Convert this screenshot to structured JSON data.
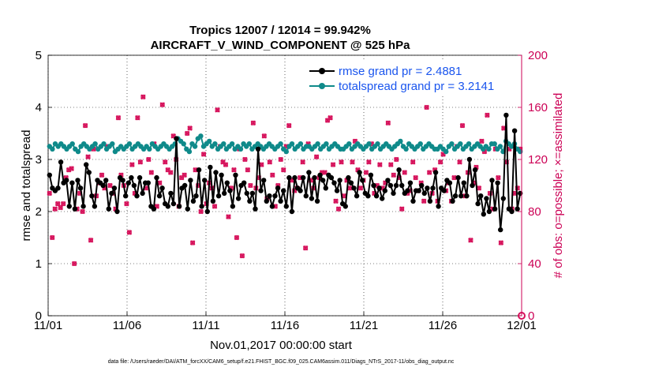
{
  "chart_data": {
    "type": "line",
    "title_line1": "Tropics 12007 / 12014 = 99.942%",
    "title_line2": "AIRCRAFT_V_WIND_COMPONENT @ 525 hPa",
    "xlabel": "Nov.01,2017 00:00:00 start",
    "ylabel_left": "rmse and totalspread",
    "ylabel_right": "# of obs: o=possible; ×=assimilated",
    "footnote": "data file: /Users/raeder/DAI/ATM_forcXX/CAM6_setup/f.e21.FHIST_BGC.f09_025.CAM6assim.011/Diags_NTrS_2017-11/obs_diag_output.nc",
    "xlim": [
      0,
      30
    ],
    "ylim_left": [
      0,
      5
    ],
    "ylim_right": [
      0,
      200
    ],
    "x_ticks": [
      0,
      5,
      10,
      15,
      20,
      25,
      30
    ],
    "x_tick_labels": [
      "11/01",
      "11/06",
      "11/11",
      "11/16",
      "11/21",
      "11/26",
      "12/01"
    ],
    "y_ticks_left": [
      "0",
      "1",
      "2",
      "3",
      "4",
      "5"
    ],
    "y_ticks_right": [
      "0",
      "40",
      "80",
      "120",
      "160",
      "200"
    ],
    "colors": {
      "rmse": "#000000",
      "spread": "#0f8a8a",
      "obs": "#d6125b",
      "right_axis": "#cc0055",
      "legend_text": "#1a55ee"
    },
    "series": [
      {
        "name": "rmse grand pr = 2.4881",
        "color": "#000000",
        "values": [
          2.7,
          2.45,
          2.4,
          2.45,
          2.95,
          2.55,
          2.6,
          2.1,
          2.55,
          2.05,
          2.6,
          2.45,
          2.1,
          2.9,
          2.75,
          2.3,
          2.1,
          2.6,
          2.55,
          2.5,
          2.6,
          2.05,
          2.35,
          2.45,
          2.0,
          2.65,
          2.6,
          2.3,
          2.55,
          2.65,
          2.5,
          2.3,
          2.65,
          2.35,
          2.55,
          2.55,
          2.1,
          2.05,
          2.65,
          2.3,
          2.45,
          2.15,
          2.1,
          2.35,
          2.15,
          3.4,
          2.1,
          2.45,
          2.5,
          2.05,
          2.6,
          2.2,
          2.3,
          2.8,
          2.1,
          2.6,
          2.0,
          2.85,
          2.2,
          2.75,
          2.3,
          2.7,
          2.35,
          2.55,
          2.4,
          2.1,
          2.7,
          2.25,
          2.5,
          2.55,
          2.35,
          2.2,
          2.35,
          2.05,
          3.2,
          2.4,
          2.6,
          2.2,
          2.3,
          2.1,
          2.3,
          2.45,
          2.2,
          2.4,
          2.1,
          2.65,
          2.0,
          2.65,
          2.45,
          2.4,
          2.65,
          2.3,
          2.75,
          2.25,
          2.65,
          2.2,
          2.7,
          2.6,
          2.45,
          2.7,
          2.65,
          2.55,
          2.4,
          2.6,
          2.15,
          2.1,
          2.65,
          2.55,
          2.45,
          2.3,
          2.75,
          2.6,
          2.35,
          2.3,
          2.7,
          2.5,
          2.3,
          2.45,
          2.25,
          2.4,
          2.6,
          2.5,
          2.35,
          2.5,
          2.8,
          2.5,
          2.35,
          2.4,
          2.55,
          2.2,
          2.4,
          2.4,
          2.5,
          2.35,
          2.45,
          2.2,
          2.45,
          2.75,
          2.1,
          2.45,
          2.4,
          2.6,
          2.55,
          2.2,
          2.3,
          2.65,
          2.3,
          2.55,
          2.3,
          3.0,
          2.5,
          2.8,
          2.15,
          2.3,
          1.95,
          2.25,
          2.0,
          2.6,
          2.05,
          2.55,
          1.65,
          2.25,
          3.85,
          2.05,
          2.0,
          3.55,
          2.05,
          2.35
        ]
      },
      {
        "name": "totalspread grand pr = 3.2141",
        "color": "#0f8a8a",
        "values": [
          3.25,
          3.2,
          3.3,
          3.25,
          3.3,
          3.25,
          3.2,
          3.25,
          3.3,
          3.2,
          3.15,
          3.25,
          3.3,
          3.25,
          3.2,
          3.25,
          3.3,
          3.2,
          3.25,
          3.3,
          3.2,
          3.25,
          3.3,
          3.15,
          3.2,
          3.25,
          3.2,
          3.25,
          3.3,
          3.2,
          3.25,
          3.3,
          3.25,
          3.2,
          3.25,
          3.2,
          3.3,
          3.25,
          3.2,
          3.25,
          3.3,
          3.25,
          3.2,
          3.25,
          3.3,
          3.4,
          3.35,
          3.3,
          3.2,
          3.15,
          3.3,
          3.25,
          3.4,
          3.45,
          3.25,
          3.3,
          3.35,
          3.25,
          3.3,
          3.2,
          3.25,
          3.3,
          3.2,
          3.25,
          3.3,
          3.2,
          3.25,
          3.2,
          3.3,
          3.25,
          3.3,
          3.2,
          3.25,
          3.3,
          3.25,
          3.2,
          3.25,
          3.3,
          3.25,
          3.2,
          3.25,
          3.3,
          3.2,
          3.15,
          3.25,
          3.3,
          3.2,
          3.25,
          3.3,
          3.2,
          3.25,
          3.25,
          3.2,
          3.25,
          3.3,
          3.2,
          3.25,
          3.3,
          3.2,
          3.25,
          3.3,
          3.25,
          3.2,
          3.2,
          3.25,
          3.3,
          3.2,
          3.25,
          3.3,
          3.25,
          3.2,
          3.25,
          3.3,
          3.2,
          3.25,
          3.3,
          3.2,
          3.25,
          3.3,
          3.25,
          3.2,
          3.25,
          3.3,
          3.35,
          3.25,
          3.2,
          3.3,
          3.25,
          3.2,
          3.25,
          3.3,
          3.2,
          3.25,
          3.3,
          3.25,
          3.2,
          3.2,
          3.25,
          3.2,
          3.15,
          3.25,
          3.3,
          3.2,
          3.25,
          3.3,
          3.2,
          3.25,
          3.3,
          3.2,
          3.25,
          3.3,
          3.25,
          3.2,
          3.25,
          3.2,
          3.3,
          3.3,
          3.2,
          3.25,
          3.15,
          3.35,
          3.3,
          3.25,
          3.3,
          3.2,
          3.15
        ]
      }
    ],
    "obs_counts": [
      94,
      60,
      82,
      86,
      83,
      86,
      106,
      112,
      113,
      40,
      82,
      94,
      80,
      146,
      122,
      58,
      128,
      92,
      102,
      108,
      98,
      130,
      100,
      94,
      82,
      152,
      108,
      100,
      86,
      64,
      116,
      94,
      152,
      118,
      168,
      98,
      120,
      110,
      132,
      84,
      102,
      162,
      118,
      112,
      110,
      138,
      120,
      84,
      106,
      108,
      140,
      144,
      56,
      112,
      100,
      80,
      124,
      86,
      102,
      98,
      84,
      158,
      130,
      118,
      116,
      76,
      98,
      112,
      60,
      128,
      46,
      120,
      112,
      100,
      148,
      98,
      106,
      116,
      138,
      90,
      118,
      108,
      84,
      100,
      120,
      112,
      130,
      146,
      104,
      96,
      98,
      106,
      118,
      52,
      132,
      104,
      98,
      122,
      106,
      110,
      110,
      150,
      152,
      116,
      88,
      82,
      118,
      92,
      104,
      98,
      118,
      134,
      112,
      98,
      104,
      110,
      118,
      132,
      94,
      100,
      116,
      98,
      102,
      148,
      116,
      108,
      120,
      106,
      82,
      110,
      94,
      96,
      118,
      106,
      96,
      102,
      88,
      160,
      110,
      94,
      112,
      88,
      118,
      124,
      96,
      102,
      88,
      106,
      130,
      118,
      146,
      92,
      110,
      58,
      102,
      114,
      98,
      134,
      126,
      154,
      94,
      82,
      128,
      106,
      56,
      144,
      118,
      128,
      82,
      94,
      98,
      128
    ]
  },
  "legend": {
    "rmse": "rmse grand pr = 2.4881",
    "spread": "totalspread grand pr = 3.2141"
  }
}
